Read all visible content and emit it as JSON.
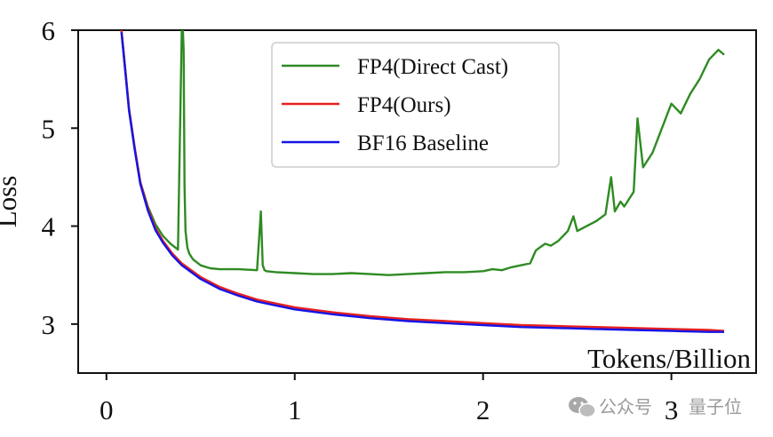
{
  "chart_data": {
    "type": "line",
    "xlabel": "Tokens/Billion",
    "ylabel": "Loss",
    "xlim": [
      -0.15,
      3.45
    ],
    "ylim": [
      2.5,
      6
    ],
    "xticks": [
      "0",
      "1",
      "2",
      "3"
    ],
    "yticks": [
      "3",
      "4",
      "5",
      "6"
    ],
    "grid": false,
    "legend_position": "top-center",
    "series": [
      {
        "name": "FP4(Direct Cast)",
        "color": "#2e8b22",
        "x": [
          0.08,
          0.1,
          0.12,
          0.15,
          0.18,
          0.22,
          0.26,
          0.3,
          0.34,
          0.38,
          0.4,
          0.405,
          0.41,
          0.415,
          0.42,
          0.43,
          0.44,
          0.46,
          0.5,
          0.55,
          0.6,
          0.7,
          0.8,
          0.82,
          0.83,
          0.84,
          0.85,
          0.9,
          1.0,
          1.1,
          1.2,
          1.3,
          1.4,
          1.5,
          1.6,
          1.7,
          1.8,
          1.9,
          2.0,
          2.05,
          2.1,
          2.15,
          2.2,
          2.25,
          2.28,
          2.3,
          2.33,
          2.36,
          2.4,
          2.45,
          2.48,
          2.5,
          2.55,
          2.6,
          2.65,
          2.68,
          2.7,
          2.73,
          2.75,
          2.8,
          2.82,
          2.85,
          2.9,
          2.95,
          3.0,
          3.05,
          3.1,
          3.15,
          3.2,
          3.25,
          3.28
        ],
        "y": [
          6.0,
          5.6,
          5.2,
          4.8,
          4.45,
          4.2,
          4.02,
          3.9,
          3.82,
          3.76,
          6.0,
          6.05,
          5.8,
          4.4,
          3.95,
          3.78,
          3.72,
          3.66,
          3.6,
          3.57,
          3.56,
          3.56,
          3.55,
          4.15,
          3.6,
          3.55,
          3.54,
          3.53,
          3.52,
          3.51,
          3.51,
          3.52,
          3.51,
          3.5,
          3.51,
          3.52,
          3.53,
          3.53,
          3.54,
          3.56,
          3.55,
          3.58,
          3.6,
          3.62,
          3.75,
          3.78,
          3.82,
          3.8,
          3.85,
          3.95,
          4.1,
          3.95,
          4.0,
          4.05,
          4.12,
          4.5,
          4.15,
          4.25,
          4.2,
          4.35,
          5.1,
          4.6,
          4.75,
          5.0,
          5.25,
          5.15,
          5.35,
          5.5,
          5.7,
          5.8,
          5.75
        ]
      },
      {
        "name": "FP4(Ours)",
        "color": "#e8201e",
        "x": [
          0.08,
          0.1,
          0.12,
          0.15,
          0.18,
          0.22,
          0.26,
          0.3,
          0.35,
          0.4,
          0.45,
          0.5,
          0.6,
          0.7,
          0.8,
          0.9,
          1.0,
          1.2,
          1.4,
          1.6,
          1.8,
          2.0,
          2.2,
          2.4,
          2.6,
          2.8,
          3.0,
          3.2,
          3.28
        ],
        "y": [
          6.0,
          5.6,
          5.2,
          4.8,
          4.45,
          4.18,
          3.98,
          3.85,
          3.72,
          3.62,
          3.55,
          3.48,
          3.38,
          3.31,
          3.25,
          3.21,
          3.17,
          3.12,
          3.08,
          3.05,
          3.03,
          3.01,
          2.99,
          2.98,
          2.97,
          2.96,
          2.95,
          2.94,
          2.93
        ]
      },
      {
        "name": "BF16 Baseline",
        "color": "#1414e6",
        "x": [
          0.08,
          0.1,
          0.12,
          0.15,
          0.18,
          0.22,
          0.26,
          0.3,
          0.35,
          0.4,
          0.45,
          0.5,
          0.6,
          0.7,
          0.8,
          0.9,
          1.0,
          1.2,
          1.4,
          1.6,
          1.8,
          2.0,
          2.2,
          2.4,
          2.6,
          2.8,
          3.0,
          3.2,
          3.28
        ],
        "y": [
          5.98,
          5.58,
          5.18,
          4.78,
          4.43,
          4.16,
          3.96,
          3.83,
          3.7,
          3.6,
          3.53,
          3.46,
          3.36,
          3.29,
          3.23,
          3.19,
          3.15,
          3.1,
          3.06,
          3.03,
          3.01,
          2.99,
          2.97,
          2.96,
          2.95,
          2.94,
          2.93,
          2.92,
          2.92
        ]
      }
    ]
  },
  "watermark": {
    "text_left": "公众号",
    "text_right": "量子位",
    "icon": "wechat-icon"
  }
}
